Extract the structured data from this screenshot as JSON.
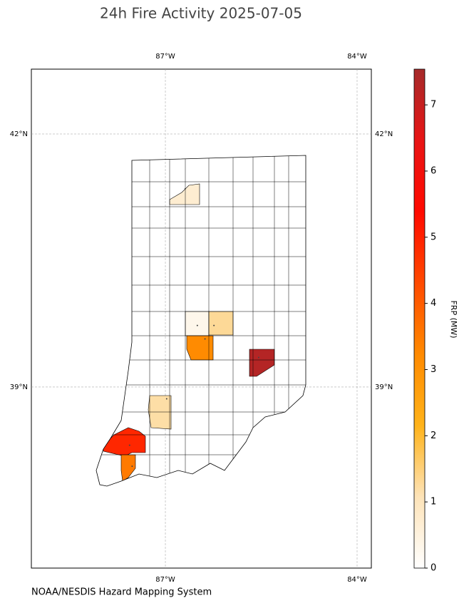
{
  "title": "24h Fire Activity 2025-07-05",
  "credit": "NOAA/NESDIS Hazard Mapping System",
  "map": {
    "lon_range": [
      -89.097,
      -83.777
    ],
    "lat_range": [
      36.853,
      42.769
    ],
    "lon_ticks": [
      {
        "value": -87,
        "label": "87°W"
      },
      {
        "value": -84,
        "label": "84°W"
      }
    ],
    "lat_ticks": [
      {
        "value": 42,
        "label": "42°N"
      },
      {
        "value": 39,
        "label": "39°N"
      }
    ]
  },
  "colorbar": {
    "label": "FRP (MW)",
    "range": [
      0,
      7.54
    ],
    "ticks": [
      0,
      1,
      2,
      3,
      4,
      5,
      6,
      7
    ],
    "colormap": [
      "#ffffff",
      "#fde3b8",
      "#ffb31a",
      "#ff8a00",
      "#ff4a00",
      "#ff0a00",
      "#e81515",
      "#a52a2a"
    ]
  },
  "fires": [
    {
      "lon": -86.69,
      "lat": 41.35,
      "frp": 0.7
    },
    {
      "lon": -86.5,
      "lat": 39.73,
      "frp": 0.3
    },
    {
      "lon": -86.24,
      "lat": 39.73,
      "frp": 1.3
    },
    {
      "lon": -86.38,
      "lat": 39.57,
      "frp": 3.2
    },
    {
      "lon": -85.54,
      "lat": 39.35,
      "frp": 7.3
    },
    {
      "lon": -86.98,
      "lat": 38.86,
      "frp": 1.2
    },
    {
      "lon": -87.56,
      "lat": 38.31,
      "frp": 4.9
    },
    {
      "lon": -87.52,
      "lat": 38.06,
      "frp": 3.5
    }
  ]
}
